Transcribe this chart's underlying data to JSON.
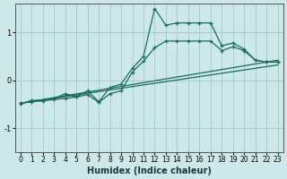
{
  "background_color": "#cce8e8",
  "grid_color": "#aacccc",
  "line_color": "#1a6b5a",
  "xlabel": "Humidex (Indice chaleur)",
  "xlim": [
    -0.5,
    23.5
  ],
  "ylim": [
    -1.5,
    1.6
  ],
  "yticks": [
    -1,
    0,
    1
  ],
  "xticks": [
    0,
    1,
    2,
    3,
    4,
    5,
    6,
    7,
    8,
    9,
    10,
    11,
    12,
    13,
    14,
    15,
    16,
    17,
    18,
    19,
    20,
    21,
    22,
    23
  ],
  "line1_x": [
    0,
    23
  ],
  "line1_y": [
    -0.48,
    0.42
  ],
  "line2_x": [
    0,
    23
  ],
  "line2_y": [
    -0.48,
    0.32
  ],
  "line3_x": [
    0,
    1,
    2,
    3,
    4,
    5,
    6,
    7,
    8,
    9,
    10,
    11,
    12,
    13,
    14,
    15,
    16,
    17,
    18,
    19,
    20,
    21,
    22,
    23
  ],
  "line3_y": [
    -0.48,
    -0.45,
    -0.43,
    -0.4,
    -0.38,
    -0.35,
    -0.3,
    -0.46,
    -0.28,
    -0.22,
    0.17,
    0.4,
    0.68,
    0.82,
    0.82,
    0.82,
    0.82,
    0.82,
    0.62,
    0.7,
    0.62,
    0.42,
    0.38,
    0.38
  ],
  "line4_x": [
    0,
    1,
    2,
    3,
    4,
    5,
    6,
    7,
    8,
    9,
    10,
    11,
    12,
    13,
    14,
    15,
    16,
    17,
    18,
    19,
    20,
    21,
    22,
    23
  ],
  "line4_y": [
    -0.5,
    -0.42,
    -0.42,
    -0.38,
    -0.28,
    -0.35,
    -0.22,
    -0.45,
    -0.15,
    -0.08,
    0.25,
    0.5,
    1.5,
    1.15,
    1.2,
    1.2,
    1.2,
    1.2,
    0.72,
    0.78,
    0.65,
    0.42,
    0.38,
    0.38
  ]
}
